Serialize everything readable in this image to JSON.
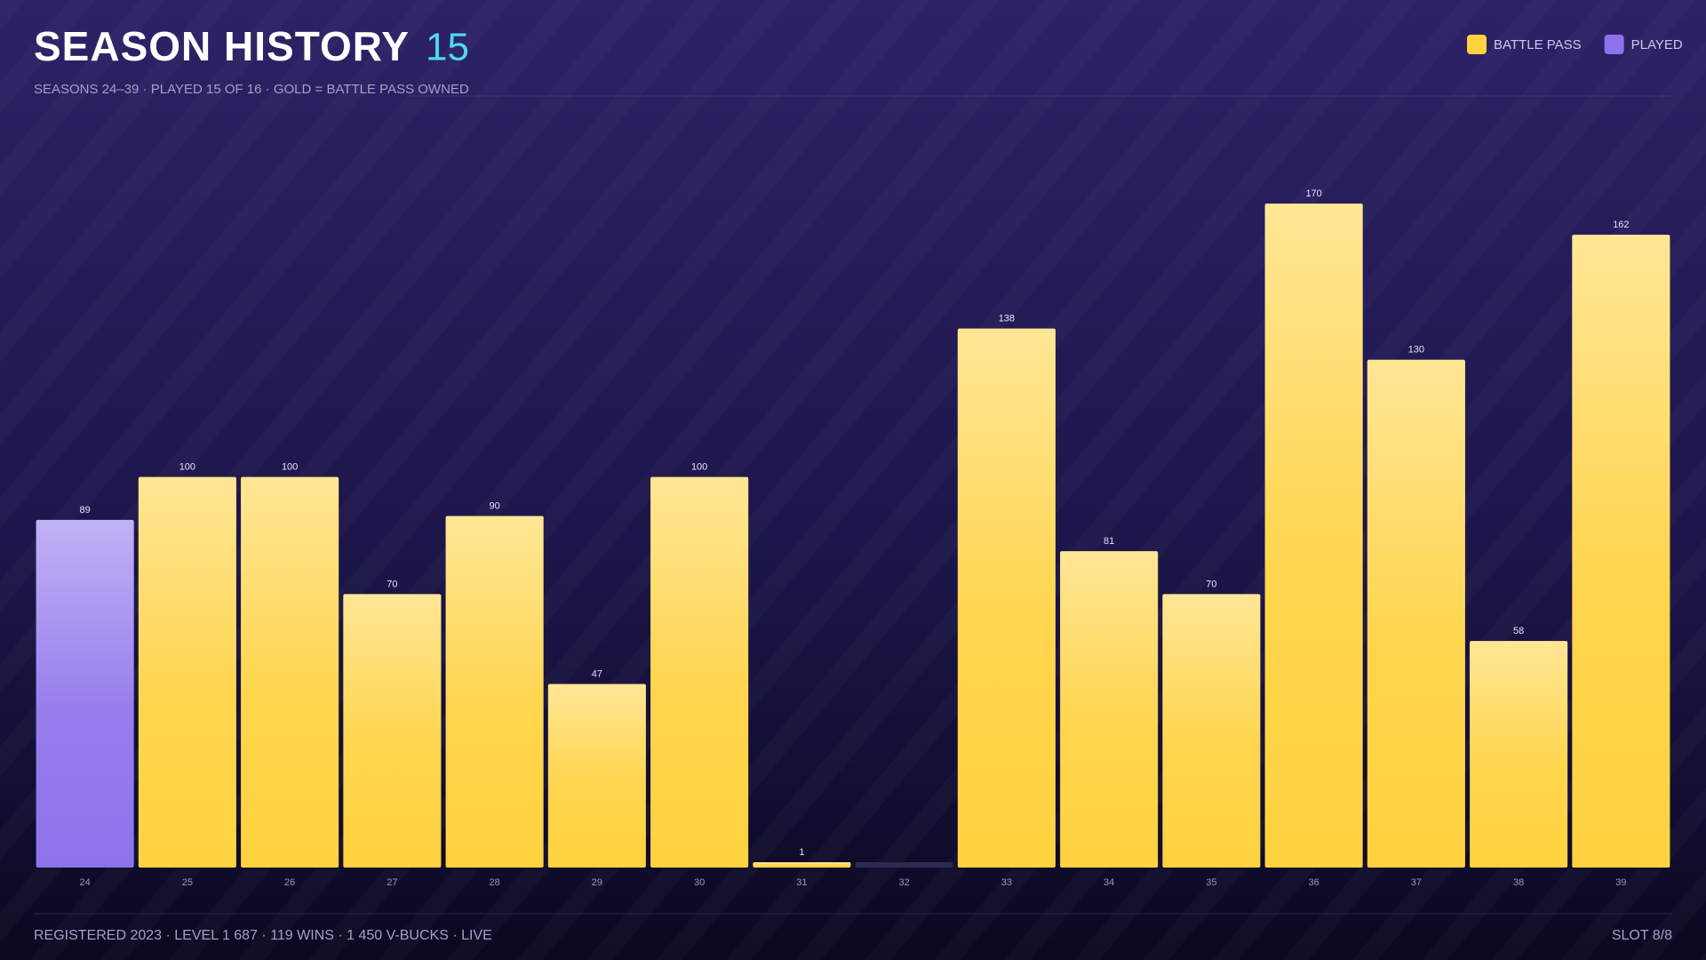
{
  "chart_data": {
    "type": "bar",
    "title": "SEASON HISTORY",
    "count": "15",
    "subtitle": "SEASONS 24–39 · PLAYED 15 OF 16 · GOLD = BATTLE PASS OWNED",
    "footer": "REGISTERED 2023 · LEVEL 1 687 · 119 WINS · 1 450 V-BUCKS · LIVE",
    "slot": "SLOT 8/8",
    "categories": [
      "24",
      "25",
      "26",
      "27",
      "28",
      "29",
      "30",
      "31",
      "32",
      "33",
      "34",
      "35",
      "36",
      "37",
      "38",
      "39"
    ],
    "series": [
      {
        "name": "BATTLE PASS",
        "color": "#ffd23f",
        "values": [
          null,
          100,
          100,
          70,
          90,
          47,
          100,
          1,
          null,
          138,
          81,
          70,
          170,
          130,
          58,
          162
        ]
      },
      {
        "name": "PLAYED",
        "color": "#8e72ec",
        "values": [
          89,
          null,
          null,
          null,
          null,
          null,
          null,
          null,
          null,
          null,
          null,
          null,
          null,
          null,
          null,
          null
        ]
      }
    ]
  }
}
